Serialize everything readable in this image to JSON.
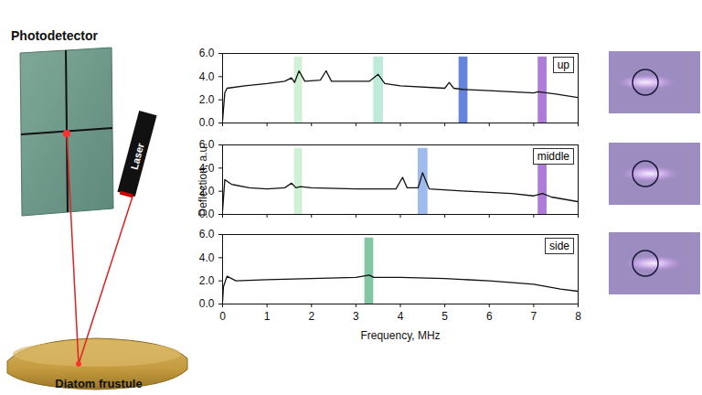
{
  "diagram": {
    "labels": {
      "detector": "Photodetector",
      "source": "Laser",
      "sample": "Diatom frustule"
    }
  },
  "chart_data": [
    {
      "type": "line",
      "title": "up",
      "color": "#111111",
      "x": [
        0.0,
        0.05,
        0.1,
        0.5,
        1.0,
        1.4,
        1.55,
        1.62,
        1.72,
        1.85,
        2.2,
        2.33,
        2.45,
        3.3,
        3.5,
        3.65,
        4.0,
        5.0,
        5.1,
        5.2,
        5.4,
        6.0,
        7.0,
        7.1,
        7.5,
        8.0
      ],
      "values": [
        0.2,
        2.6,
        3.0,
        3.2,
        3.4,
        3.6,
        3.9,
        3.5,
        4.5,
        3.6,
        3.7,
        4.5,
        3.6,
        3.6,
        4.2,
        3.4,
        3.2,
        3.0,
        3.5,
        3.0,
        2.9,
        2.8,
        2.6,
        2.7,
        2.5,
        2.2
      ],
      "xlim": [
        0,
        8
      ],
      "xticks": [
        0,
        1,
        2,
        3,
        4,
        5,
        6,
        7,
        8
      ],
      "ylim": [
        0,
        6
      ],
      "yticks": [
        0,
        2,
        4,
        6
      ],
      "tick_labels": "y",
      "bands": [
        {
          "x1": 1.62,
          "x2": 1.8,
          "y2": 5.7,
          "color": "#c9eecf"
        },
        {
          "x1": 3.4,
          "x2": 3.62,
          "y2": 5.7,
          "color": "#b2e6d2"
        },
        {
          "x1": 5.32,
          "x2": 5.52,
          "y2": 5.7,
          "color": "#4b6fd6"
        },
        {
          "x1": 7.1,
          "x2": 7.3,
          "y2": 5.7,
          "color": "#a064d2"
        }
      ]
    },
    {
      "type": "line",
      "title": "middle",
      "color": "#111111",
      "y_label": "Deflection, a.u.",
      "x": [
        0.0,
        0.05,
        0.2,
        0.6,
        1.0,
        1.4,
        1.55,
        1.65,
        1.75,
        2.0,
        3.0,
        3.9,
        4.05,
        4.15,
        4.4,
        4.5,
        4.65,
        5.5,
        6.5,
        7.0,
        7.2,
        7.4,
        8.0
      ],
      "values": [
        0.3,
        3.0,
        2.6,
        2.3,
        2.2,
        2.3,
        2.7,
        2.3,
        2.4,
        2.3,
        2.2,
        2.2,
        3.2,
        2.3,
        2.3,
        3.6,
        2.2,
        2.0,
        1.8,
        1.6,
        1.8,
        1.5,
        1.1
      ],
      "xlim": [
        0,
        8
      ],
      "xticks": [
        0,
        1,
        2,
        3,
        4,
        5,
        6,
        7,
        8
      ],
      "ylim": [
        0,
        6
      ],
      "yticks": [
        0,
        2,
        4,
        6
      ],
      "tick_labels": "y",
      "bands": [
        {
          "x1": 1.62,
          "x2": 1.8,
          "y2": 5.7,
          "color": "#c9eecf"
        },
        {
          "x1": 4.4,
          "x2": 4.62,
          "y2": 5.7,
          "color": "#8eaeea"
        },
        {
          "x1": 7.1,
          "x2": 7.3,
          "y2": 5.7,
          "color": "#a064d2"
        }
      ]
    },
    {
      "type": "line",
      "title": "side",
      "color": "#111111",
      "x_label": "Frequency, MHz",
      "x": [
        0.0,
        0.02,
        0.1,
        0.3,
        1.0,
        2.0,
        3.0,
        3.3,
        3.4,
        4.0,
        5.0,
        6.0,
        7.0,
        7.6,
        8.0
      ],
      "values": [
        0.2,
        1.5,
        2.4,
        2.0,
        2.1,
        2.2,
        2.3,
        2.5,
        2.3,
        2.3,
        2.2,
        2.0,
        1.7,
        1.3,
        1.1
      ],
      "xlim": [
        0,
        8
      ],
      "xticks": [
        0,
        1,
        2,
        3,
        4,
        5,
        6,
        7,
        8
      ],
      "ylim": [
        0,
        6
      ],
      "yticks": [
        0,
        2,
        4,
        6
      ],
      "bands": [
        {
          "x1": 3.2,
          "x2": 3.4,
          "y2": 5.7,
          "color": "#6cbc94"
        }
      ]
    }
  ]
}
